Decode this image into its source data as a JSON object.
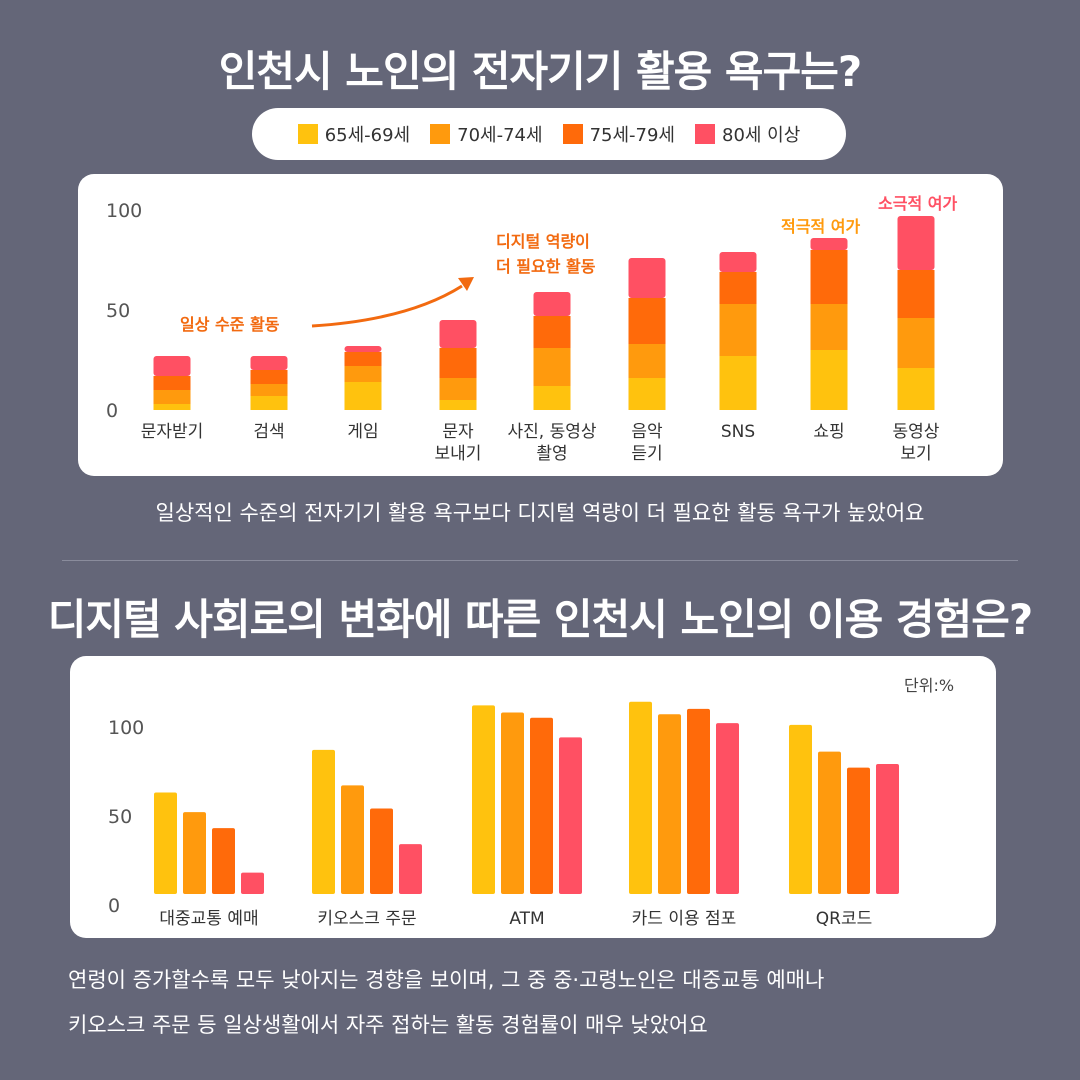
{
  "title1": "인천시 노인의 전자기기 활용 욕구는?",
  "title2": "디지털 사회로의 변화에 따른 인천시 노인의 이용 경험은?",
  "legend": [
    {
      "label": "65세-69세",
      "color": "#FFC20E"
    },
    {
      "label": "70세-74세",
      "color": "#FF9A0D"
    },
    {
      "label": "75세-79세",
      "color": "#FF6A0A"
    },
    {
      "label": "80세 이상",
      "color": "#FF5063"
    }
  ],
  "caption1": "일상적인 수준의 전자기기 활용 욕구보다 디지털 역량이 더 필요한 활동 욕구가 높았어요",
  "caption2_line1": "연령이 증가할수록 모두 낮아지는 경향을 보이며, 그 중 중·고령노인은 대중교통 예매나",
  "caption2_line2": "키오스크 주문 등 일상생활에서 자주 접하는 활동 경험률이 매우 낮았어요",
  "chart_data": [
    {
      "type": "bar",
      "stacked": true,
      "categories": [
        "문자받기",
        "검색",
        "게임",
        "문자\n보내기",
        "사진, 동영상\n촬영",
        "음악\n듣기",
        "SNS",
        "쇼핑",
        "동영상\n보기"
      ],
      "series": [
        {
          "name": "65세-69세",
          "color": "#FFC20E",
          "values": [
            3,
            7,
            14,
            5,
            12,
            16,
            27,
            30,
            21
          ]
        },
        {
          "name": "70세-74세",
          "color": "#FF9A0D",
          "values": [
            7,
            6,
            8,
            11,
            19,
            17,
            26,
            23,
            25
          ]
        },
        {
          "name": "75세-79세",
          "color": "#FF6A0A",
          "values": [
            7,
            7,
            7,
            15,
            16,
            23,
            16,
            27,
            24
          ]
        },
        {
          "name": "80세 이상",
          "color": "#FF5063",
          "values": [
            10,
            7,
            3,
            14,
            12,
            20,
            10,
            6,
            27
          ]
        }
      ],
      "yticks": [
        0,
        50,
        100
      ],
      "ylim": [
        0,
        100
      ],
      "annotations": {
        "daily": "일상 수준 활동",
        "digital": "디지털 역량이\n더 필요한 활동",
        "active": "적극적 여가",
        "passive": "소극적 여가"
      },
      "annotation_colors": {
        "daily": "#F26A10",
        "digital": "#F26A10",
        "active": "#FF9A0D",
        "passive": "#FF5063"
      }
    },
    {
      "type": "bar",
      "categories": [
        "대중교통 예매",
        "키오스크 주문",
        "ATM",
        "카드 이용 점포",
        "QR코드"
      ],
      "series": [
        {
          "name": "65세-69세",
          "color": "#FFC20E",
          "values": [
            57,
            81,
            106,
            108,
            95
          ]
        },
        {
          "name": "70세-74세",
          "color": "#FF9A0D",
          "values": [
            46,
            61,
            102,
            101,
            80
          ]
        },
        {
          "name": "75세-79세",
          "color": "#FF6A0A",
          "values": [
            37,
            48,
            99,
            104,
            71
          ]
        },
        {
          "name": "80세 이상",
          "color": "#FF5063",
          "values": [
            12,
            28,
            88,
            96,
            73
          ]
        }
      ],
      "yticks": [
        0,
        50,
        100
      ],
      "ylim": [
        0,
        100
      ],
      "unit_label": "단위:%"
    }
  ]
}
